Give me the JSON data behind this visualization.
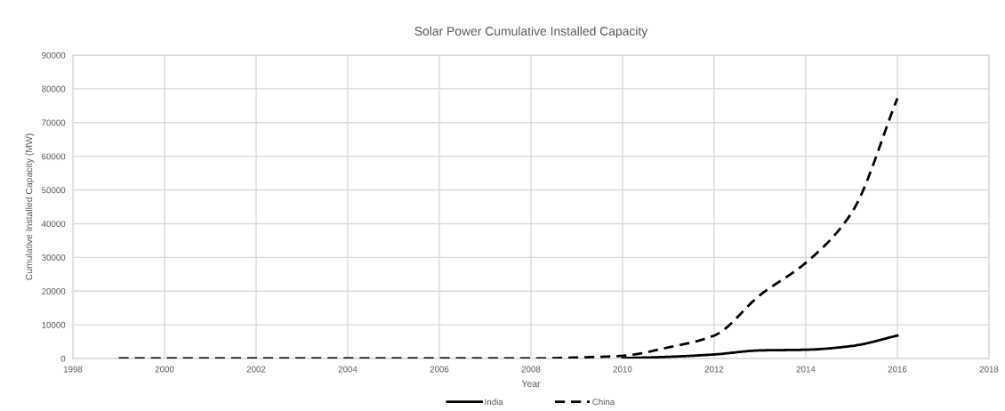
{
  "chart_data": {
    "type": "line",
    "title": "Solar Power Cumulative Installed Capacity",
    "xlabel": "Year",
    "ylabel": "Cumulative Installed Capacity (MW)",
    "xlim": [
      1998,
      2018
    ],
    "xticks": [
      1998,
      2000,
      2002,
      2004,
      2006,
      2008,
      2010,
      2012,
      2014,
      2016,
      2018
    ],
    "ylim": [
      0,
      90000
    ],
    "yticks": [
      0,
      10000,
      20000,
      30000,
      40000,
      50000,
      60000,
      70000,
      80000,
      90000
    ],
    "grid": true,
    "legend": "bottom",
    "series": [
      {
        "name": "India",
        "color": "#000000",
        "line_style": "solid",
        "x": [
          2010,
          2011,
          2012,
          2013,
          2014,
          2015,
          2016
        ],
        "values": [
          100,
          500,
          1200,
          2400,
          2600,
          3700,
          6800
        ]
      },
      {
        "name": "China",
        "color": "#000000",
        "line_style": "dashed",
        "x": [
          1999,
          2000,
          2001,
          2002,
          2003,
          2004,
          2005,
          2006,
          2007,
          2008,
          2009,
          2010,
          2011,
          2012,
          2013,
          2014,
          2015,
          2016
        ],
        "values": [
          0,
          0,
          0,
          0,
          0,
          0,
          0,
          0,
          0,
          0,
          300,
          800,
          3300,
          6800,
          18800,
          28400,
          43200,
          77200
        ]
      }
    ]
  }
}
